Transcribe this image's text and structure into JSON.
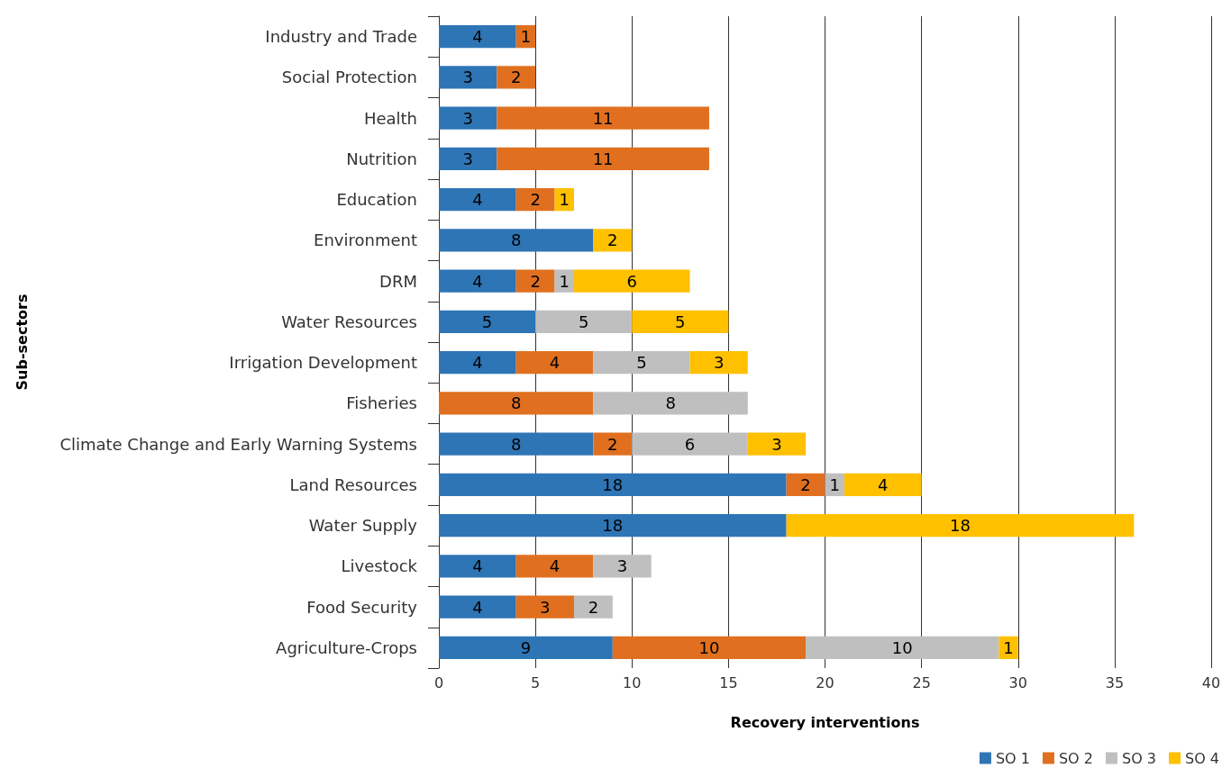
{
  "chart_data": {
    "type": "bar",
    "orientation": "horizontal",
    "stacked": true,
    "xlabel": "Recovery interventions",
    "ylabel": "Sub-sectors",
    "categories": [
      "Industry and Trade",
      "Social Protection",
      "Health",
      "Nutrition",
      "Education",
      "Environment",
      "DRM",
      "Water Resources",
      "Irrigation Development",
      "Fisheries",
      "Climate Change and Early Warning Systems",
      "Land Resources",
      "Water Supply",
      "Livestock",
      "Food Security",
      "Agriculture-Crops"
    ],
    "series": [
      {
        "name": "SO 1",
        "color": "#2e75b6",
        "values": [
          4,
          3,
          3,
          3,
          4,
          8,
          4,
          5,
          4,
          null,
          8,
          18,
          18,
          4,
          4,
          9
        ]
      },
      {
        "name": "SO 2",
        "color": "#e07020",
        "values": [
          1,
          2,
          11,
          11,
          2,
          null,
          2,
          null,
          4,
          8,
          2,
          2,
          null,
          4,
          3,
          10
        ]
      },
      {
        "name": "SO 3",
        "color": "#bfbfbf",
        "values": [
          null,
          null,
          null,
          null,
          null,
          null,
          1,
          5,
          5,
          8,
          6,
          1,
          null,
          3,
          2,
          10
        ]
      },
      {
        "name": "SO 4",
        "color": "#ffc000",
        "values": [
          null,
          null,
          null,
          null,
          1,
          2,
          6,
          5,
          3,
          null,
          3,
          4,
          18,
          null,
          null,
          1
        ]
      }
    ],
    "xlim": [
      0,
      40
    ],
    "xticks": [
      0,
      5,
      10,
      15,
      20,
      25,
      30,
      35,
      40
    ],
    "grid": "x",
    "legend": "bottom right",
    "data_labels": true
  }
}
